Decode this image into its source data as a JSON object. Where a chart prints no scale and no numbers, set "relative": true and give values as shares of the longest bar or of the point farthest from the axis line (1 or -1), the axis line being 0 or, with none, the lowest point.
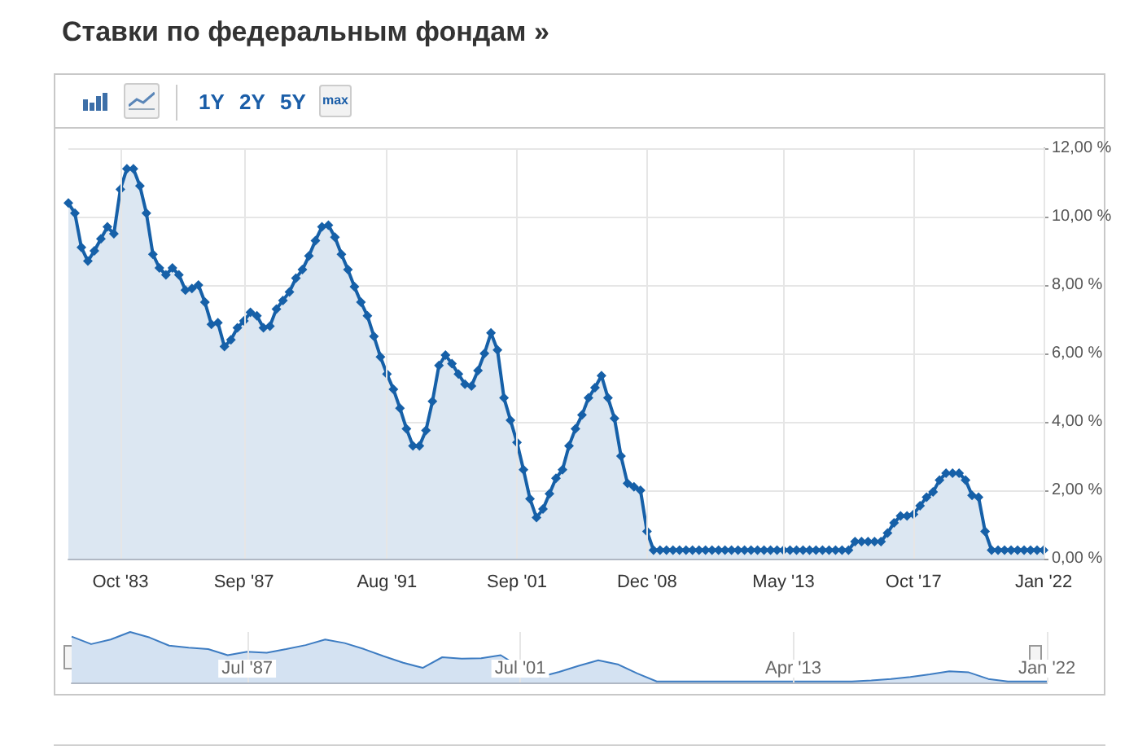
{
  "chart_data": [
    {
      "type": "area",
      "title": "Ставки по федеральным фондам »",
      "annotations": [
        "1Y",
        "2Y",
        "5Y",
        "max"
      ],
      "categories": [
        null,
        null,
        null,
        null,
        null,
        null,
        null,
        null,
        "Oct '83",
        null,
        null,
        null,
        null,
        null,
        null,
        null,
        null,
        null,
        null,
        null,
        null,
        null,
        null,
        null,
        null,
        null,
        null,
        "Sep '87",
        null,
        null,
        null,
        null,
        null,
        null,
        null,
        null,
        null,
        null,
        null,
        null,
        null,
        null,
        null,
        null,
        null,
        null,
        null,
        null,
        null,
        "Aug '91",
        null,
        null,
        null,
        null,
        null,
        null,
        null,
        null,
        null,
        null,
        null,
        null,
        null,
        null,
        null,
        null,
        null,
        null,
        null,
        "Sep '01",
        null,
        null,
        null,
        null,
        null,
        null,
        null,
        null,
        null,
        null,
        null,
        null,
        null,
        null,
        null,
        null,
        null,
        null,
        null,
        "Dec '08",
        null,
        null,
        null,
        null,
        null,
        null,
        null,
        null,
        null,
        null,
        null,
        null,
        null,
        null,
        null,
        null,
        null,
        null,
        null,
        null,
        "May '13",
        null,
        null,
        null,
        null,
        null,
        null,
        null,
        null,
        null,
        null,
        null,
        null,
        null,
        null,
        null,
        null,
        null,
        null,
        null,
        "Oct '17",
        null,
        null,
        null,
        null,
        null,
        null,
        null,
        null,
        null,
        null,
        null,
        null,
        null,
        null,
        null,
        null,
        null,
        null,
        null,
        "Jan '22"
      ],
      "series": [
        {
          "color": "#1660a8",
          "values": [
            10.4,
            10.1,
            9.1,
            8.7,
            9.0,
            9.35,
            9.7,
            9.5,
            10.8,
            11.4,
            11.4,
            10.9,
            10.1,
            8.9,
            8.5,
            8.3,
            8.5,
            8.3,
            7.85,
            7.9,
            8.0,
            7.5,
            6.85,
            6.9,
            6.2,
            6.4,
            6.75,
            6.95,
            7.2,
            7.1,
            6.75,
            6.8,
            7.3,
            7.55,
            7.8,
            8.2,
            8.45,
            8.85,
            9.3,
            9.7,
            9.75,
            9.4,
            8.9,
            8.45,
            7.95,
            7.5,
            7.1,
            6.5,
            5.9,
            5.4,
            4.95,
            4.4,
            3.8,
            3.3,
            3.3,
            3.75,
            4.6,
            5.65,
            5.95,
            5.7,
            5.4,
            5.1,
            5.05,
            5.5,
            6.0,
            6.6,
            6.1,
            4.7,
            4.05,
            3.4,
            2.6,
            1.75,
            1.2,
            1.45,
            1.9,
            2.35,
            2.6,
            3.3,
            3.8,
            4.2,
            4.7,
            5.0,
            5.35,
            4.7,
            4.1,
            3.0,
            2.2,
            2.1,
            2.0,
            0.8,
            0.25,
            0.25,
            0.25,
            0.25,
            0.25,
            0.25,
            0.25,
            0.25,
            0.25,
            0.25,
            0.25,
            0.25,
            0.25,
            0.25,
            0.25,
            0.25,
            0.25,
            0.25,
            0.25,
            0.25,
            0.25,
            0.25,
            0.25,
            0.25,
            0.25,
            0.25,
            0.25,
            0.25,
            0.25,
            0.25,
            0.25,
            0.5,
            0.5,
            0.5,
            0.5,
            0.5,
            0.75,
            1.05,
            1.25,
            1.25,
            1.3,
            1.55,
            1.8,
            1.95,
            2.3,
            2.5,
            2.5,
            2.5,
            2.3,
            1.85,
            1.8,
            0.8,
            0.25,
            0.25,
            0.25,
            0.25,
            0.25,
            0.25,
            0.25,
            0.25,
            0.25
          ]
        }
      ],
      "ylim": [
        0,
        12
      ],
      "yticks": [
        {
          "value": 0,
          "label": "0,00 %"
        },
        {
          "value": 2,
          "label": "2,00 %"
        },
        {
          "value": 4,
          "label": "4,00 %"
        },
        {
          "value": 6,
          "label": "6,00 %"
        },
        {
          "value": 8,
          "label": "8,00 %"
        },
        {
          "value": 10,
          "label": "10,00 %"
        },
        {
          "value": 12,
          "label": "12,00 %"
        }
      ],
      "grid": true,
      "marker": "diamond"
    },
    {
      "type": "area",
      "relative": true,
      "categories": [
        null,
        null,
        null,
        null,
        null,
        null,
        null,
        null,
        null,
        "Jul '87",
        null,
        null,
        null,
        null,
        null,
        null,
        null,
        null,
        null,
        null,
        null,
        null,
        null,
        "Jul '01",
        null,
        null,
        null,
        null,
        null,
        null,
        null,
        null,
        null,
        null,
        null,
        null,
        null,
        "Apr '13",
        null,
        null,
        null,
        null,
        null,
        null,
        null,
        null,
        null,
        null,
        null,
        null,
        "Jan '22"
      ],
      "series": [
        {
          "color": "#3d7cc2",
          "values": [
            0.91,
            0.76,
            0.85,
            1.0,
            0.89,
            0.73,
            0.69,
            0.66,
            0.54,
            0.61,
            0.59,
            0.66,
            0.74,
            0.85,
            0.78,
            0.66,
            0.52,
            0.39,
            0.29,
            0.5,
            0.47,
            0.48,
            0.54,
            0.3,
            0.11,
            0.21,
            0.33,
            0.44,
            0.36,
            0.18,
            0.02,
            0.02,
            0.02,
            0.02,
            0.02,
            0.02,
            0.02,
            0.02,
            0.02,
            0.02,
            0.02,
            0.04,
            0.07,
            0.11,
            0.16,
            0.22,
            0.2,
            0.07,
            0.02,
            0.02,
            0.02
          ]
        }
      ],
      "grid": "x",
      "marker": "none"
    }
  ]
}
